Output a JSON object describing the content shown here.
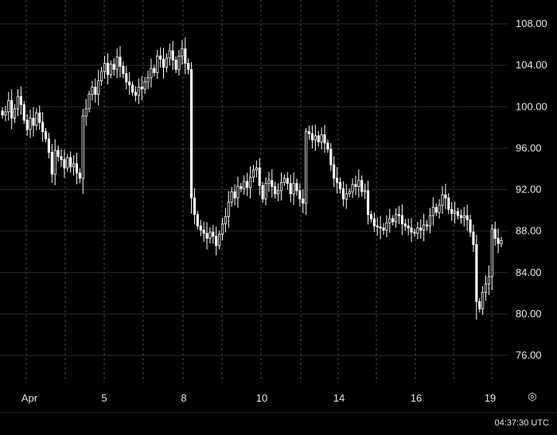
{
  "chart_data": {
    "type": "candlestick",
    "title": "",
    "xlabel": "",
    "ylabel": "",
    "ylim": [
      72.0,
      111.0
    ],
    "y_ticks": [
      "108.00",
      "104.00",
      "100.00",
      "96.00",
      "92.00",
      "88.00",
      "84.00",
      "80.00",
      "76.00"
    ],
    "x_ticks": [
      "Apr",
      "5",
      "8",
      "10",
      "14",
      "16",
      "19"
    ],
    "grid": {
      "horizontal": true,
      "vertical_dashed": true
    },
    "colors": {
      "background": "#000000",
      "candle": "#ffffff",
      "grid": "#2a2a2a",
      "vgrid": "#3a4a66"
    },
    "series": [
      {
        "values": [
          99.2,
          99.5,
          100.6,
          98.9,
          99.8,
          101.0,
          100.2,
          98.7,
          97.8,
          98.9,
          98.2,
          99.4,
          98.5,
          97.6,
          96.9,
          95.6,
          93.5,
          95.8,
          95.2,
          94.9,
          94.1,
          95.1,
          94.2,
          94.5,
          93.6,
          93.1,
          99.1,
          99.8,
          101.2,
          101.9,
          101.2,
          102.5,
          103.4,
          104.2,
          103.1,
          104.1,
          103.6,
          104.8,
          103.9,
          103.2,
          102.4,
          102.1,
          101.4,
          101.1,
          101.9,
          101.7,
          102.4,
          102.8,
          103.7,
          103.3,
          104.9,
          104.6,
          103.8,
          104.7,
          105.4,
          104.5,
          103.6,
          104.9,
          105.6,
          104.2,
          103.6,
          91.2,
          89.6,
          88.5,
          88.1,
          87.8,
          87.3,
          87.9,
          87.5,
          86.6,
          87.7,
          88.7,
          89.4,
          90.8,
          91.8,
          91.2,
          92.3,
          92.1,
          92.8,
          92.2,
          93.2,
          93.9,
          94.1,
          92.4,
          91.1,
          92.6,
          92.9,
          92.3,
          91.6,
          91.9,
          92.7,
          93.1,
          92.6,
          91.6,
          92.6,
          91.9,
          91.1,
          90.7,
          97.6,
          97.4,
          96.8,
          97.2,
          96.6,
          97.3,
          96.5,
          95.9,
          94.4,
          93.1,
          92.7,
          92.1,
          91.1,
          91.6,
          91.8,
          92.5,
          92.3,
          92.9,
          91.8,
          91.9,
          89.6,
          89.2,
          88.5,
          88.4,
          88.3,
          88.1,
          88.8,
          89.2,
          88.9,
          89.6,
          89.5,
          88.7,
          88.5,
          88.3,
          87.9,
          87.8,
          88.3,
          88.1,
          88.6,
          88.5,
          89.5,
          90.3,
          89.8,
          90.5,
          91.5,
          91.2,
          90.1,
          89.7,
          89.9,
          89.5,
          89.3,
          89.5,
          89.1,
          87.9,
          86.7,
          81.2,
          80.5,
          82.1,
          82.9,
          83.6,
          88.2,
          87.3,
          86.8,
          87.1
        ]
      }
    ]
  },
  "status": {
    "clock": "04:37:30 UTC"
  },
  "icons": {
    "settings": "settings-hexagon-icon"
  }
}
